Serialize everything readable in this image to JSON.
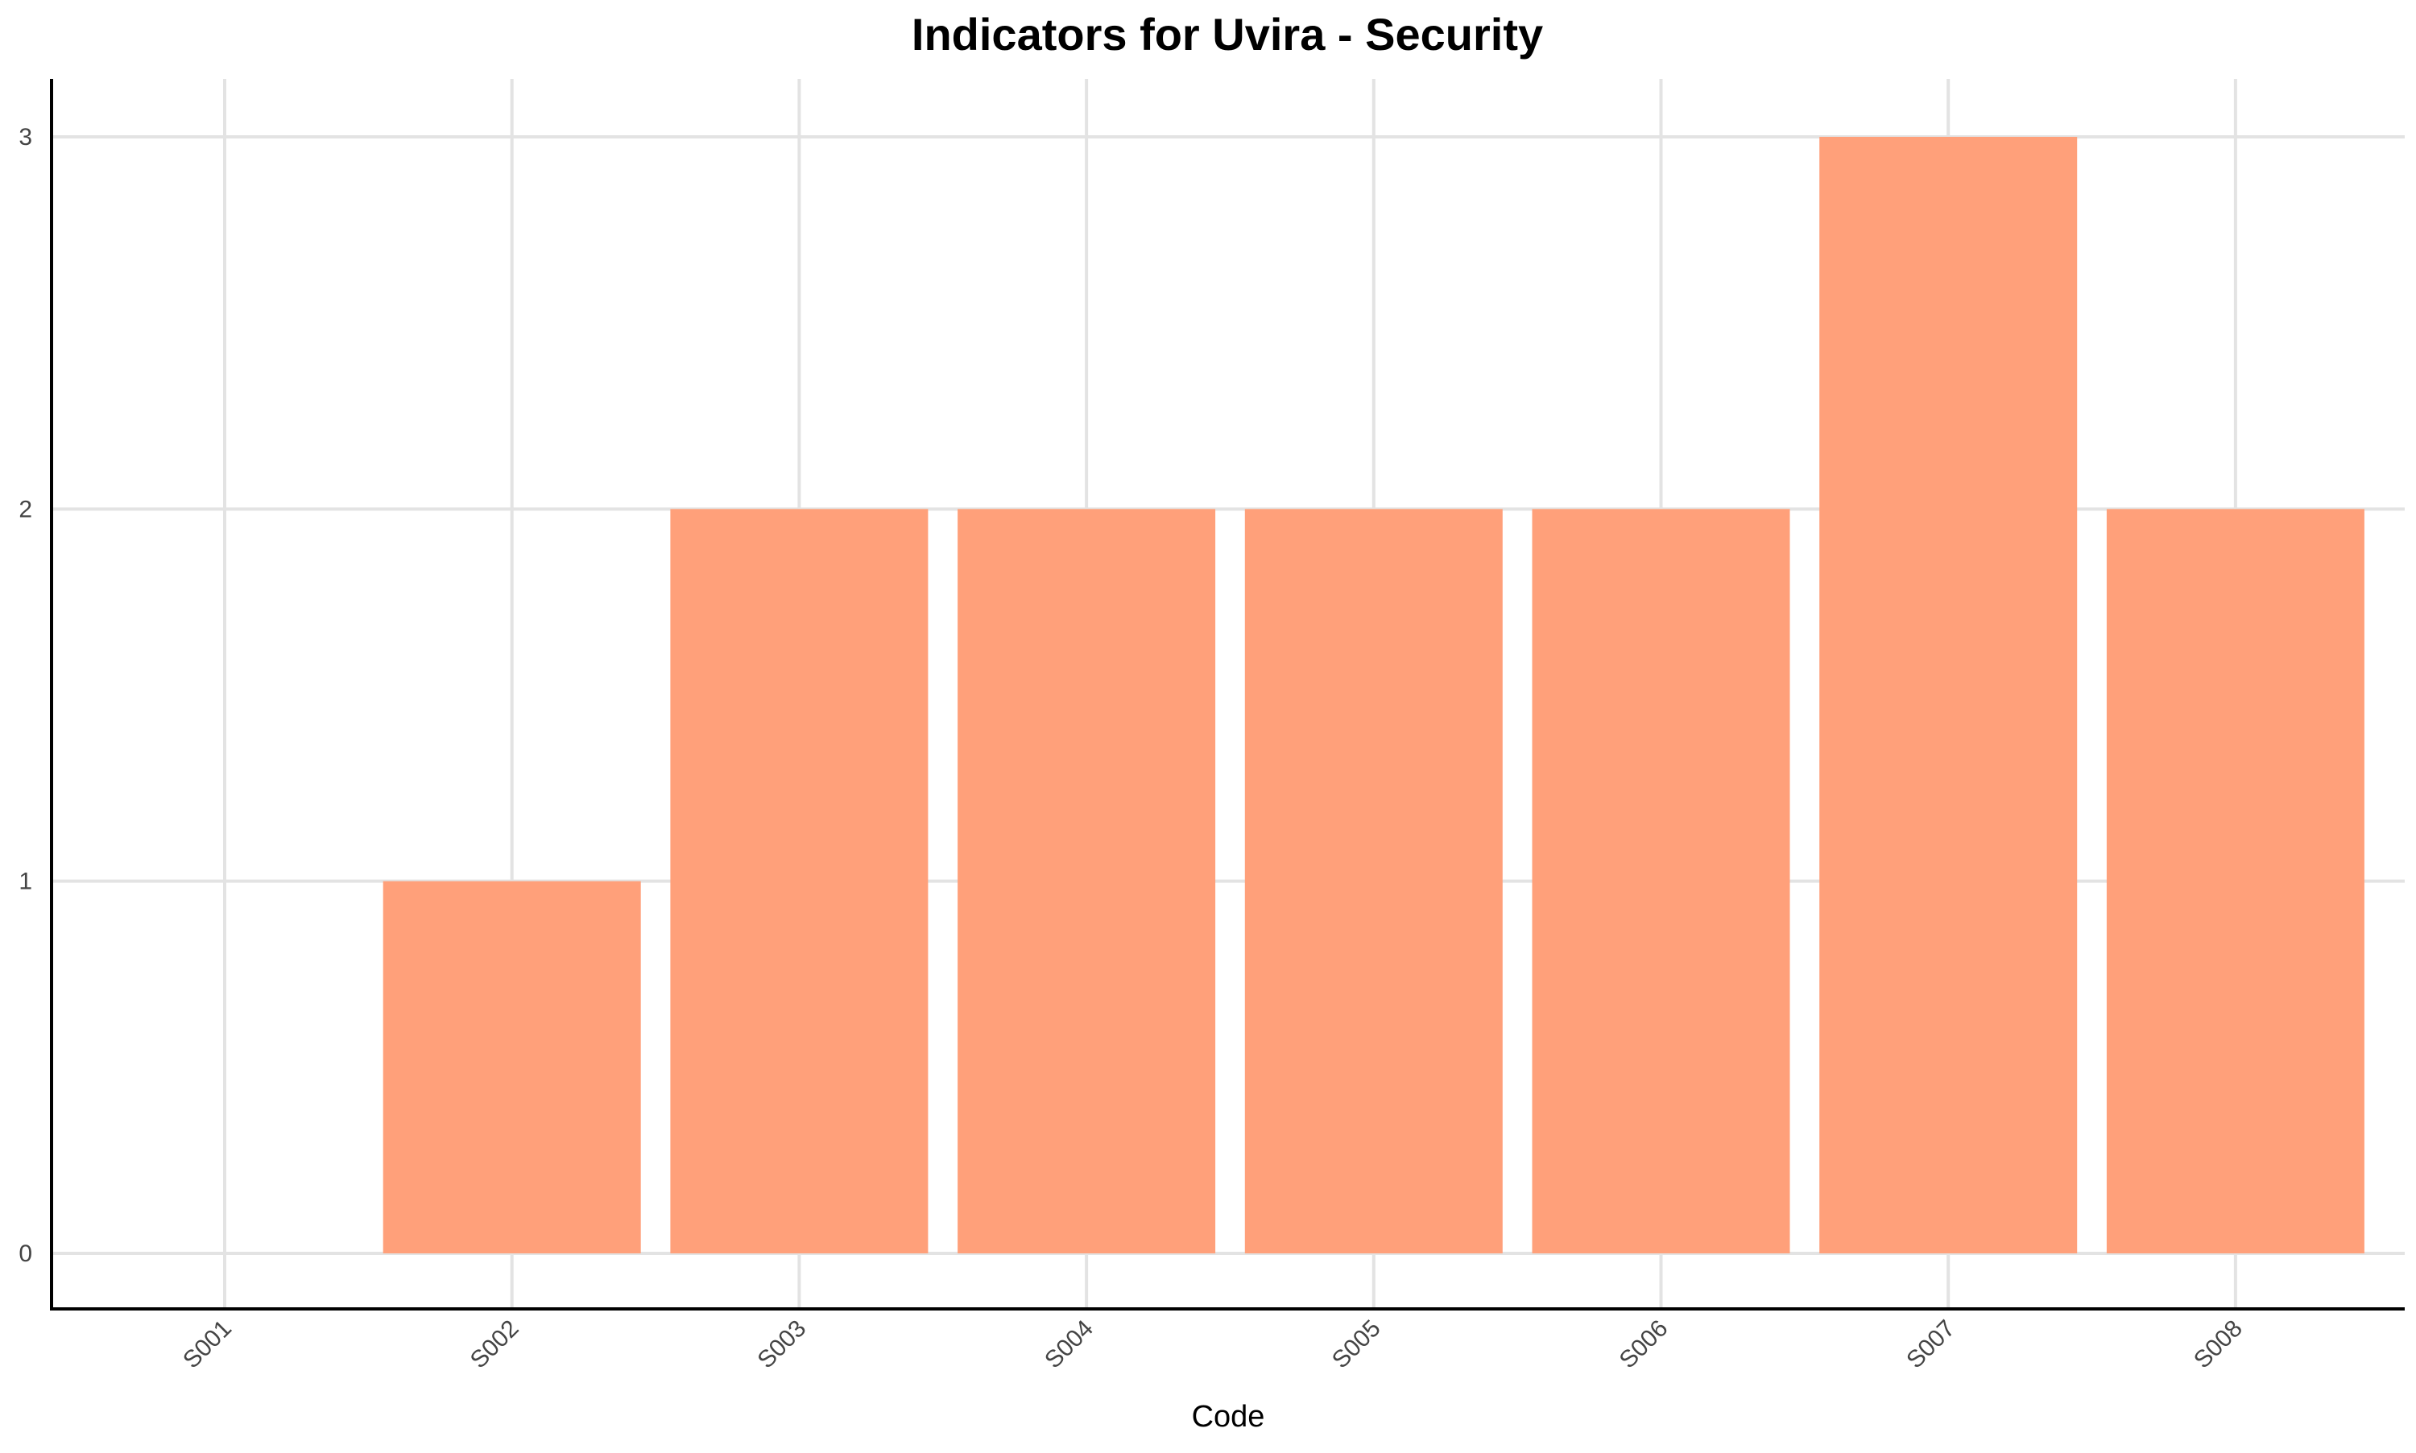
{
  "chart_data": {
    "type": "bar",
    "title": "Indicators for Uvira - Security",
    "xlabel": "Code",
    "ylabel": "",
    "categories": [
      "S001",
      "S002",
      "S003",
      "S004",
      "S005",
      "S006",
      "S007",
      "S008"
    ],
    "values": [
      0,
      1,
      2,
      2,
      2,
      2,
      3,
      2
    ],
    "ylim": [
      0,
      3
    ],
    "yticks": [
      "0",
      "1",
      "2",
      "3"
    ],
    "grid": true,
    "legend": "none",
    "colors": {
      "bar": "#FFA07A",
      "grid": "#E3E3E3",
      "axis": "#000000"
    }
  }
}
